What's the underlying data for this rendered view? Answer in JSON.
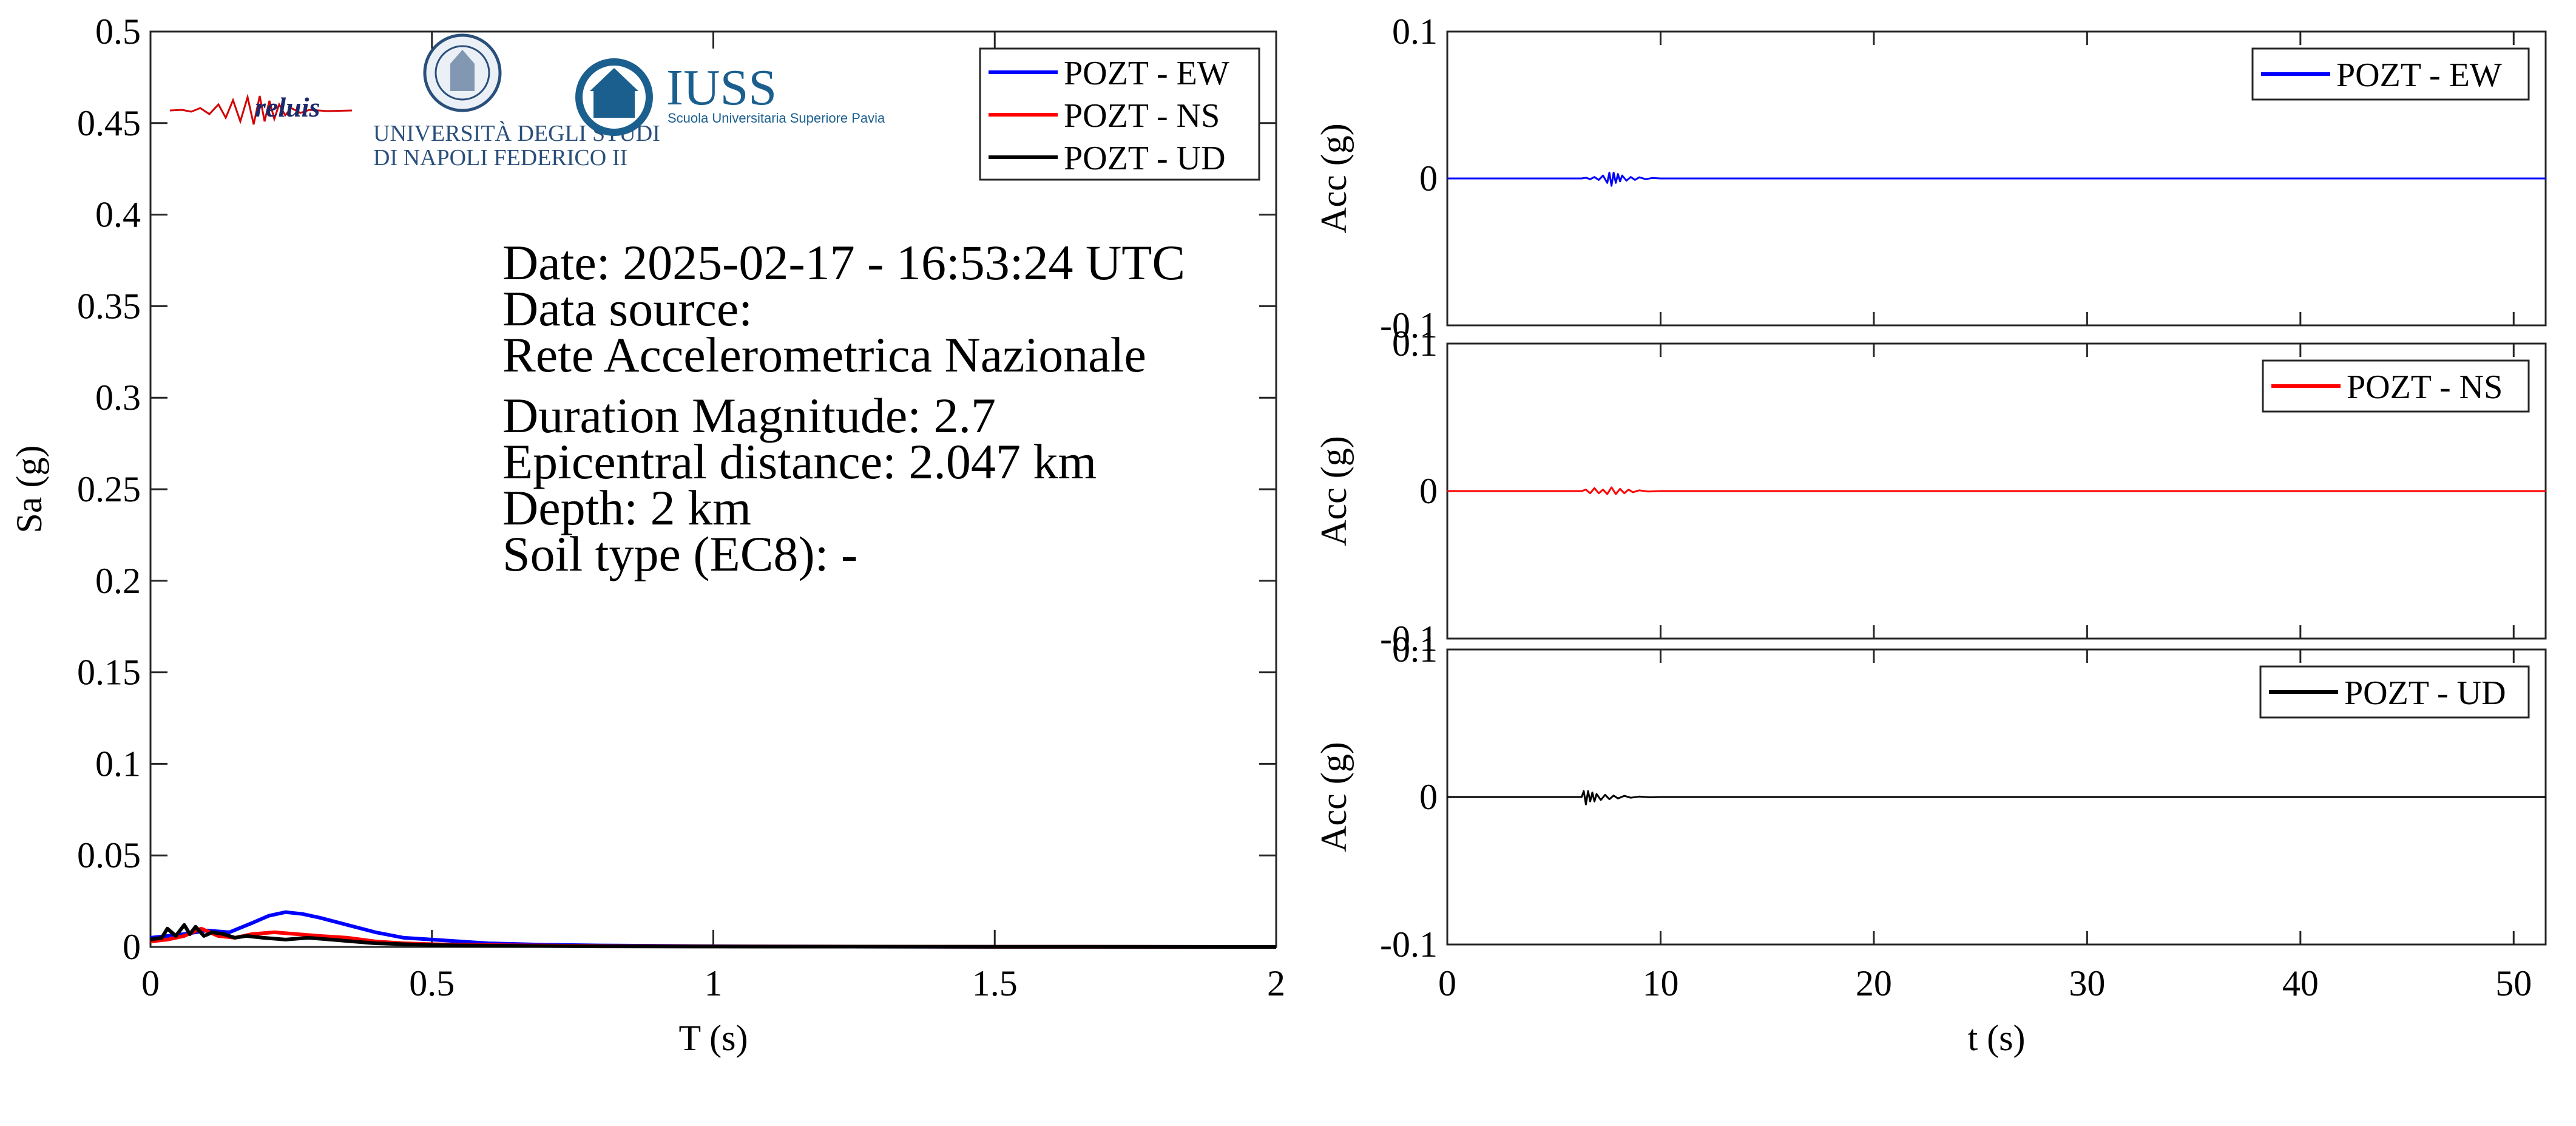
{
  "figure": {
    "logos": {
      "reluis": "reluis",
      "unina": [
        "UNIVERSITÀ DEGLI STUDI",
        "DI NAPOLI FEDERICO II"
      ],
      "iuss": {
        "name": "IUSS",
        "subtitle": "Scuola Universitaria Superiore Pavia"
      }
    },
    "info": {
      "date": "Date: 2025-02-17 - 16:53:24 UTC",
      "source_label": "Data source:",
      "source": "Rete Accelerometrica Nazionale",
      "magnitude": "Duration Magnitude: 2.7",
      "distance": "Epicentral distance: 2.047 km",
      "depth": "Depth: 2 km",
      "soil": "Soil type (EC8): -"
    }
  },
  "chart_data": [
    {
      "type": "line",
      "xlabel": "T (s)",
      "ylabel": "Sa (g)",
      "xlim": [
        0,
        2
      ],
      "ylim": [
        0,
        0.5
      ],
      "xticks": [
        0,
        0.5,
        1,
        1.5,
        2
      ],
      "xtick_labels": [
        "0",
        "0.5",
        "1",
        "1.5",
        "2"
      ],
      "yticks": [
        0,
        0.05,
        0.1,
        0.15,
        0.2,
        0.25,
        0.3,
        0.35,
        0.4,
        0.45,
        0.5
      ],
      "ytick_labels": [
        "0",
        "0.05",
        "0.1",
        "0.15",
        "0.2",
        "0.25",
        "0.3",
        "0.35",
        "0.4",
        "0.45",
        "0.5"
      ],
      "grid": false,
      "legend_position": "top-right",
      "series": [
        {
          "name": "POZT - EW",
          "color": "#0000ff",
          "x": [
            0,
            0.03,
            0.06,
            0.1,
            0.14,
            0.18,
            0.21,
            0.24,
            0.27,
            0.3,
            0.35,
            0.4,
            0.45,
            0.5,
            0.6,
            0.7,
            0.8,
            1.0,
            1.2,
            1.5,
            2.0
          ],
          "y": [
            0.005,
            0.006,
            0.007,
            0.009,
            0.008,
            0.013,
            0.017,
            0.019,
            0.018,
            0.016,
            0.012,
            0.008,
            0.005,
            0.004,
            0.002,
            0.0012,
            0.0008,
            0.0004,
            0.0002,
            0.0001,
            0
          ]
        },
        {
          "name": "POZT - NS",
          "color": "#ff0000",
          "x": [
            0,
            0.03,
            0.06,
            0.09,
            0.12,
            0.15,
            0.18,
            0.22,
            0.26,
            0.3,
            0.35,
            0.4,
            0.45,
            0.5,
            0.6,
            0.8,
            1.0,
            1.5,
            2.0
          ],
          "y": [
            0.003,
            0.004,
            0.006,
            0.01,
            0.006,
            0.005,
            0.007,
            0.008,
            0.007,
            0.006,
            0.005,
            0.003,
            0.002,
            0.0015,
            0.001,
            0.0005,
            0.0003,
            0.0001,
            0
          ]
        },
        {
          "name": "POZT - UD",
          "color": "#000000",
          "x": [
            0,
            0.02,
            0.03,
            0.045,
            0.06,
            0.07,
            0.08,
            0.095,
            0.11,
            0.13,
            0.15,
            0.17,
            0.2,
            0.24,
            0.28,
            0.32,
            0.36,
            0.4,
            0.45,
            0.5,
            0.6,
            0.8,
            1.0,
            1.5,
            2.0
          ],
          "y": [
            0.004,
            0.005,
            0.01,
            0.006,
            0.012,
            0.007,
            0.011,
            0.006,
            0.008,
            0.007,
            0.005,
            0.006,
            0.005,
            0.004,
            0.005,
            0.004,
            0.003,
            0.002,
            0.0015,
            0.001,
            0.0007,
            0.0003,
            0.0002,
            0.0001,
            0
          ]
        }
      ]
    },
    {
      "type": "line",
      "xlabel": "",
      "ylabel": "Acc (g)",
      "xlim": [
        0,
        51.5
      ],
      "ylim": [
        -0.1,
        0.1
      ],
      "yticks": [
        -0.1,
        0,
        0.1
      ],
      "ytick_labels": [
        "-0.1",
        "0",
        "0.1"
      ],
      "xticks": [
        0,
        10,
        20,
        30,
        40,
        50
      ],
      "xtick_labels": [],
      "legend_position": "top-right",
      "series": [
        {
          "name": "POZT - EW",
          "color": "#0000ff",
          "x": [
            0,
            6.3,
            6.5,
            6.7,
            6.9,
            7.1,
            7.3,
            7.5,
            7.6,
            7.7,
            7.8,
            7.9,
            8.0,
            8.1,
            8.2,
            8.4,
            8.6,
            8.8,
            9.0,
            9.3,
            9.6,
            10.0,
            51.5
          ],
          "y": [
            0,
            0,
            0.0005,
            -0.0005,
            0.001,
            -0.001,
            0.002,
            -0.003,
            0.004,
            -0.005,
            0.004,
            -0.003,
            0.003,
            -0.002,
            0.002,
            -0.0015,
            0.001,
            -0.001,
            0.0008,
            -0.0005,
            0.0003,
            0,
            0
          ]
        }
      ]
    },
    {
      "type": "line",
      "xlabel": "",
      "ylabel": "Acc (g)",
      "xlim": [
        0,
        51.5
      ],
      "ylim": [
        -0.1,
        0.1
      ],
      "yticks": [
        -0.1,
        0,
        0.1
      ],
      "ytick_labels": [
        "-0.1",
        "0",
        "0.1"
      ],
      "xticks": [
        0,
        10,
        20,
        30,
        40,
        50
      ],
      "xtick_labels": [],
      "legend_position": "top-right",
      "series": [
        {
          "name": "POZT - NS",
          "color": "#ff0000",
          "x": [
            0,
            6.3,
            6.5,
            6.7,
            6.9,
            7.1,
            7.3,
            7.5,
            7.7,
            7.9,
            8.1,
            8.3,
            8.5,
            8.7,
            9.0,
            9.4,
            10.0,
            51.5
          ],
          "y": [
            0,
            0,
            0.001,
            -0.0015,
            0.002,
            -0.0015,
            0.001,
            -0.002,
            0.0025,
            -0.002,
            0.0015,
            -0.0015,
            0.001,
            -0.0008,
            0.0005,
            -0.0003,
            0,
            0
          ]
        }
      ]
    },
    {
      "type": "line",
      "xlabel": "t (s)",
      "ylabel": "Acc (g)",
      "xlim": [
        0,
        51.5
      ],
      "ylim": [
        -0.1,
        0.1
      ],
      "yticks": [
        -0.1,
        0,
        0.1
      ],
      "ytick_labels": [
        "-0.1",
        "0",
        "0.1"
      ],
      "xticks": [
        0,
        10,
        20,
        30,
        40,
        50
      ],
      "xtick_labels": [
        "0",
        "10",
        "20",
        "30",
        "40",
        "50"
      ],
      "legend_position": "top-right",
      "series": [
        {
          "name": "POZT - UD",
          "color": "#000000",
          "x": [
            0,
            6.3,
            6.4,
            6.5,
            6.6,
            6.7,
            6.8,
            6.9,
            7.0,
            7.2,
            7.4,
            7.6,
            7.8,
            8.0,
            8.3,
            8.6,
            9.0,
            9.5,
            10.0,
            51.5
          ],
          "y": [
            0,
            0,
            0.004,
            -0.005,
            0.004,
            -0.003,
            0.003,
            -0.003,
            0.002,
            -0.002,
            0.0015,
            -0.0015,
            0.001,
            -0.001,
            0.0008,
            -0.0005,
            0.0003,
            -0.0002,
            0,
            0
          ]
        }
      ]
    }
  ]
}
